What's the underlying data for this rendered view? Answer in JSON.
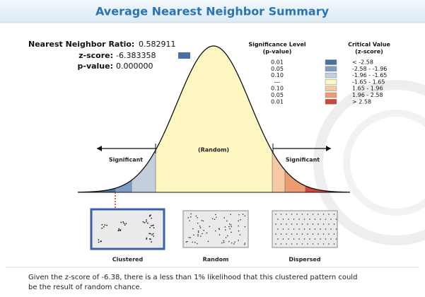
{
  "header": {
    "title": "Average Nearest Neighbor Summary"
  },
  "stats": [
    {
      "label": "Nearest Neighbor Ratio:",
      "value": "0.582911"
    },
    {
      "label": "z-score:",
      "value": "-6.383358"
    },
    {
      "label": "p-value:",
      "value": "0.000000"
    }
  ],
  "legend": {
    "significance_header": [
      "Significance Level",
      "(p-value)"
    ],
    "critical_header": [
      "Critical Value",
      "(z-score)"
    ],
    "rows": [
      {
        "p": "0.01",
        "z": "< -2.58"
      },
      {
        "p": "0.05",
        "z": "-2.58 - -1.96"
      },
      {
        "p": "0.10",
        "z": "-1.96 - -1.65"
      },
      {
        "p": "---",
        "z": "-1.65 - 1.65"
      },
      {
        "p": "0.10",
        "z": "1.65 - 1.96"
      },
      {
        "p": "0.05",
        "z": "1.96 - 2.58"
      },
      {
        "p": "0.01",
        "z": "> 2.58"
      }
    ]
  },
  "diagram": {
    "left": "Significant",
    "center": "(Random)",
    "right": "Significant"
  },
  "patterns": [
    "Clustered",
    "Random",
    "Dispersed"
  ],
  "caption": [
    "Given the z-score of -6.38, there is a less than 1% likelihood that this clustered pattern could",
    "be the result of random chance."
  ]
}
